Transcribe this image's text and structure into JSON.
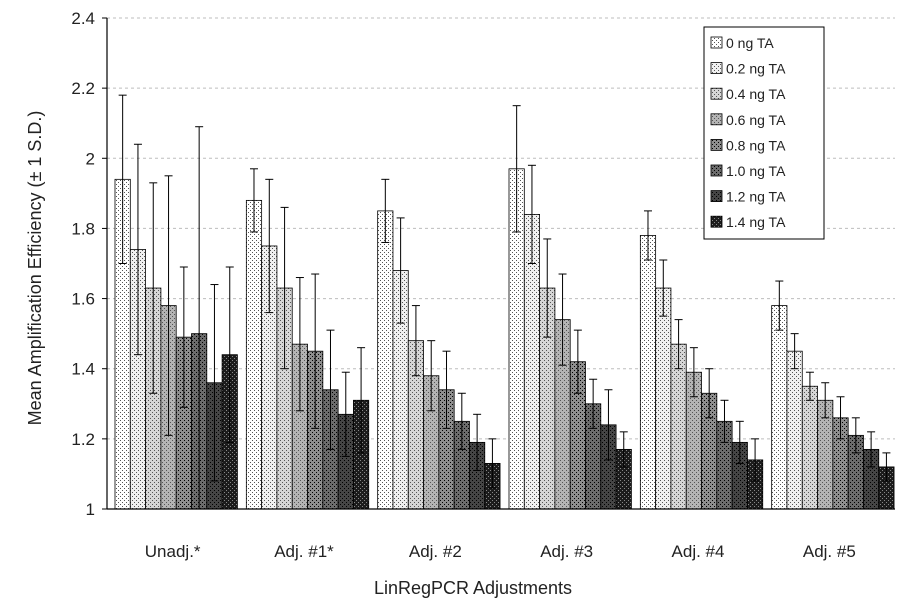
{
  "chart_data": {
    "type": "bar",
    "title": "",
    "xlabel": "LinRegPCR Adjustments",
    "ylabel": "Mean Amplification Efficiency (± 1 S.D.)",
    "ylim": [
      1,
      2.4
    ],
    "yticks": [
      "1",
      "1.2",
      "1.4",
      "1.6",
      "1.8",
      "2",
      "2.2",
      "2.4"
    ],
    "grid": true,
    "legend_position": "top-right",
    "categories": [
      "Unadj.*",
      "Adj. #1*",
      "Adj. #2",
      "Adj. #3",
      "Adj. #4",
      "Adj. #5"
    ],
    "series": [
      {
        "name": "0 ng TA",
        "values": [
          1.94,
          1.88,
          1.85,
          1.97,
          1.78,
          1.58
        ],
        "errors": [
          0.24,
          0.09,
          0.09,
          0.18,
          0.07,
          0.07
        ]
      },
      {
        "name": "0.2 ng TA",
        "values": [
          1.74,
          1.75,
          1.68,
          1.84,
          1.63,
          1.45
        ],
        "errors": [
          0.3,
          0.19,
          0.15,
          0.14,
          0.08,
          0.05
        ]
      },
      {
        "name": "0.4 ng TA",
        "values": [
          1.63,
          1.63,
          1.48,
          1.63,
          1.47,
          1.35
        ],
        "errors": [
          0.3,
          0.23,
          0.1,
          0.14,
          0.07,
          0.04
        ]
      },
      {
        "name": "0.6 ng TA",
        "values": [
          1.58,
          1.47,
          1.38,
          1.54,
          1.39,
          1.31
        ],
        "errors": [
          0.37,
          0.19,
          0.1,
          0.13,
          0.07,
          0.05
        ]
      },
      {
        "name": "0.8 ng TA",
        "values": [
          1.49,
          1.45,
          1.34,
          1.42,
          1.33,
          1.26
        ],
        "errors": [
          0.2,
          0.22,
          0.11,
          0.09,
          0.07,
          0.06
        ]
      },
      {
        "name": "1.0 ng TA",
        "values": [
          1.5,
          1.34,
          1.25,
          1.3,
          1.25,
          1.21
        ],
        "errors": [
          0.59,
          0.17,
          0.08,
          0.07,
          0.06,
          0.05
        ]
      },
      {
        "name": "1.2 ng TA",
        "values": [
          1.36,
          1.27,
          1.19,
          1.24,
          1.19,
          1.17
        ],
        "errors": [
          0.28,
          0.12,
          0.08,
          0.1,
          0.06,
          0.05
        ]
      },
      {
        "name": "1.4 ng TA",
        "values": [
          1.44,
          1.31,
          1.13,
          1.17,
          1.14,
          1.12
        ],
        "errors": [
          0.25,
          0.15,
          0.07,
          0.05,
          0.06,
          0.04
        ]
      }
    ],
    "colors": [
      "#ffffff",
      "#f0f0f0",
      "#d6d6d6",
      "#b4b4b4",
      "#8e8e8e",
      "#6c6c6c",
      "#454545",
      "#1c1c1c"
    ]
  }
}
